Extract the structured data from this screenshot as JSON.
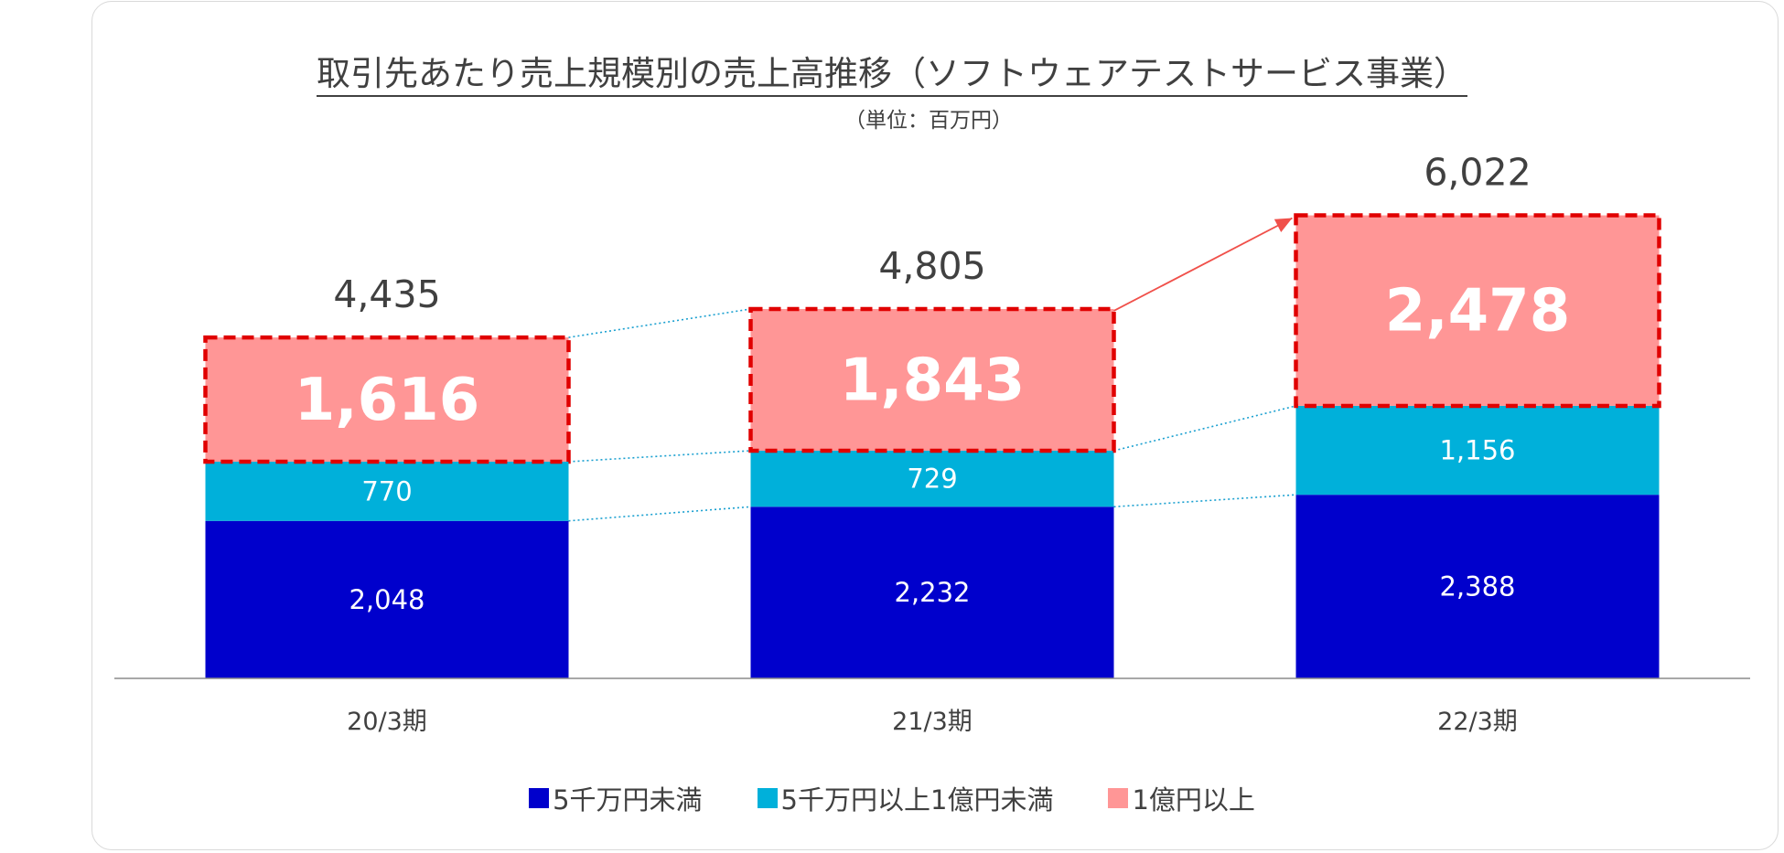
{
  "chart_data": {
    "type": "bar",
    "stacked": true,
    "title": "取引先あたり売上規模別の売上高推移（ソフトウェアテストサービス事業）",
    "subtitle": "（単位：百万円）",
    "categories": [
      "20/3期",
      "21/3期",
      "22/3期"
    ],
    "series": [
      {
        "name": "5千万円未満",
        "values": [
          2048,
          2232,
          2388
        ],
        "color": "#0000CC",
        "labels": [
          "2,048",
          "2,232",
          "2,388"
        ]
      },
      {
        "name": "5千万円以上1億円未満",
        "values": [
          770,
          729,
          1156
        ],
        "color": "#00B0DA",
        "labels": [
          "770",
          "729",
          "1,156"
        ]
      },
      {
        "name": "1億円以上",
        "values": [
          1616,
          1843,
          2478
        ],
        "color": "#FF9696",
        "labels": [
          "1,616",
          "1,843",
          "2,478"
        ]
      }
    ],
    "totals": [
      4435,
      4805,
      6022
    ],
    "total_labels": [
      "4,435",
      "4,805",
      "6,022"
    ],
    "highlight_series": "1億円以上",
    "highlight_color": "#E00000",
    "ylim": [
      0,
      6300
    ],
    "legend_position": "bottom"
  }
}
